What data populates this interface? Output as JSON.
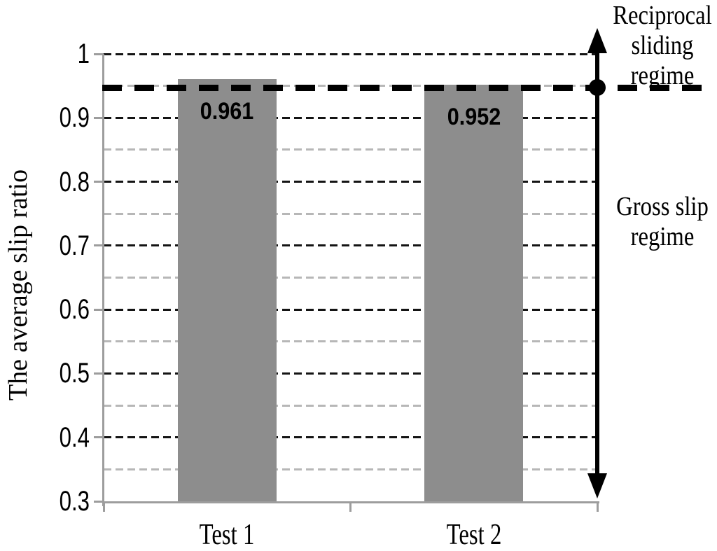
{
  "chart_data": {
    "type": "bar",
    "categories": [
      "Test 1",
      "Test 2"
    ],
    "values": [
      0.961,
      0.952
    ],
    "bar_labels": [
      "0.961",
      "0.952"
    ],
    "ylabel": "The average slip ratio",
    "ylim": [
      0.3,
      1.0
    ],
    "ytick_values": [
      0.3,
      0.4,
      0.5,
      0.6,
      0.7,
      0.8,
      0.9,
      1.0
    ],
    "ytick_labels": [
      "0.3",
      "0.4",
      "0.5",
      "0.6",
      "0.7",
      "0.8",
      "0.9",
      "1"
    ],
    "minor_tick_step": 0.05,
    "major_tick_step": 0.1,
    "grid": "on",
    "legend": "none",
    "threshold": {
      "value": 0.947,
      "style": "thick-black-dashed",
      "marker": "filled-dot"
    },
    "annotations": [
      {
        "text": "Reciprocal sliding regime",
        "position": "above-threshold"
      },
      {
        "text": "Gross slip regime",
        "position": "below-threshold"
      }
    ],
    "colors": {
      "bar": "#8d8d8d",
      "axis": "#9d9d9d",
      "major_grid": "#141414",
      "minor_grid": "#b7b7b7",
      "threshold": "#000000",
      "text": "#000000"
    }
  }
}
